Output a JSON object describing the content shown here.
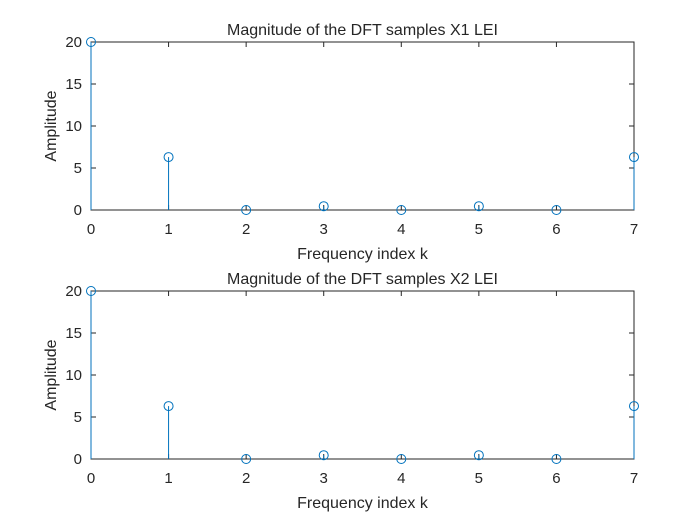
{
  "colors": {
    "series": "#0072BD",
    "axis": "#262626",
    "background": "#ffffff"
  },
  "chart_data": [
    {
      "type": "stem",
      "title": "Magnitude of the DFT samples X1 LEI",
      "xlabel": "Frequency index k",
      "ylabel": "Amplitude",
      "xlim": [
        0,
        7
      ],
      "ylim": [
        0,
        20
      ],
      "xticks": [
        "0",
        "1",
        "2",
        "3",
        "4",
        "5",
        "6",
        "7"
      ],
      "yticks": [
        "0",
        "5",
        "10",
        "15",
        "20"
      ],
      "x": [
        0,
        1,
        2,
        3,
        4,
        5,
        6,
        7
      ],
      "values": [
        20,
        6.3,
        0,
        0.45,
        0,
        0.45,
        0,
        6.3
      ]
    },
    {
      "type": "stem",
      "title": "Magnitude of the DFT samples X2 LEI",
      "xlabel": "Frequency index k",
      "ylabel": "Amplitude",
      "xlim": [
        0,
        7
      ],
      "ylim": [
        0,
        20
      ],
      "xticks": [
        "0",
        "1",
        "2",
        "3",
        "4",
        "5",
        "6",
        "7"
      ],
      "yticks": [
        "0",
        "5",
        "10",
        "15",
        "20"
      ],
      "x": [
        0,
        1,
        2,
        3,
        4,
        5,
        6,
        7
      ],
      "values": [
        20,
        6.3,
        0,
        0.45,
        0,
        0.45,
        0,
        6.3
      ]
    }
  ]
}
